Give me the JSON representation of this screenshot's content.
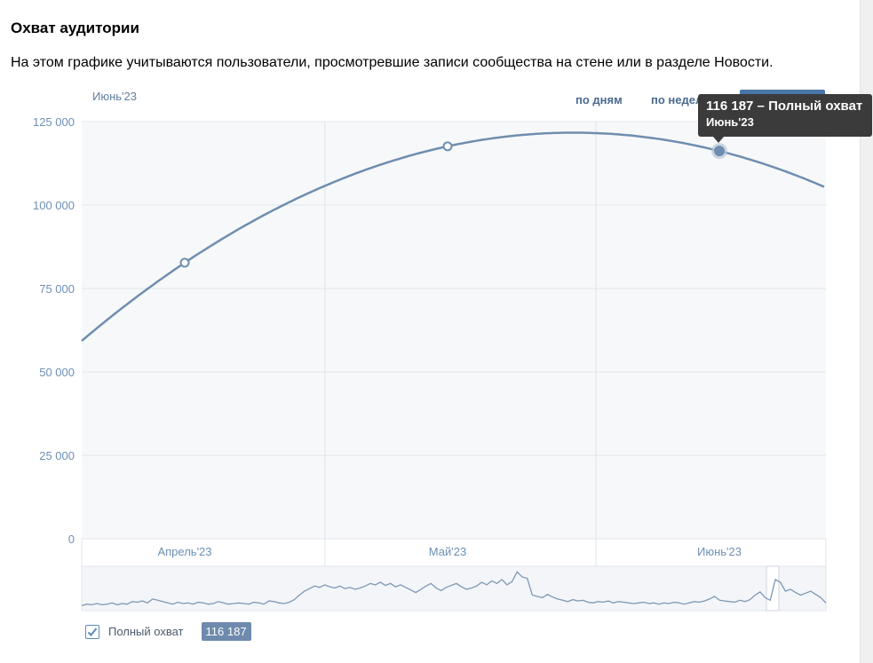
{
  "header": {
    "title": "Охват аудитории",
    "description": "На этом графике учитываются пользователи, просмотревшие записи сообщества на стене или в разделе Новости."
  },
  "period_label": "Июнь'23",
  "modes": [
    {
      "label": "по дням",
      "active": false
    },
    {
      "label": "по неделям",
      "active": false
    },
    {
      "label": "по месяцам",
      "active": true
    }
  ],
  "tooltip": {
    "value_text": "116 187 – Полный охват",
    "date_text": "Июнь'23"
  },
  "legend": {
    "label": "Полный охват",
    "value": "116 187",
    "checked": true
  },
  "colors": {
    "line": "#6f8eaf",
    "accent": "#4a76a8",
    "grid": "#e3e7ec",
    "tick_text": "#6d8fb5"
  },
  "chart_data": {
    "type": "line",
    "title": "",
    "xlabel": "",
    "ylabel": "",
    "ylim": [
      0,
      125000
    ],
    "y_ticks": [
      0,
      25000,
      50000,
      75000,
      100000,
      125000
    ],
    "y_tick_labels": [
      "0",
      "25 000",
      "50 000",
      "75 000",
      "100 000",
      "125 000"
    ],
    "x_tick_labels": [
      "Апрель'23",
      "Май'23",
      "Июнь'23"
    ],
    "grid": true,
    "series": [
      {
        "name": "Полный охват",
        "points": [
          {
            "label": "Апрель'23",
            "value": 82700
          },
          {
            "label": "Май'23",
            "value": 117600
          },
          {
            "label": "Июнь'23",
            "value": 116187
          }
        ]
      }
    ],
    "overview_sparkline": [
      8,
      10,
      9,
      11,
      9,
      10,
      12,
      9,
      11,
      10,
      14,
      13,
      15,
      12,
      18,
      16,
      14,
      12,
      10,
      13,
      11,
      12,
      10,
      13,
      12,
      10,
      11,
      14,
      12,
      10,
      11,
      12,
      11,
      10,
      13,
      12,
      10,
      15,
      14,
      12,
      11,
      13,
      17,
      24,
      30,
      34,
      38,
      36,
      40,
      37,
      35,
      38,
      34,
      36,
      33,
      35,
      38,
      42,
      40,
      44,
      39,
      42,
      37,
      40,
      36,
      32,
      28,
      33,
      38,
      42,
      35,
      31,
      36,
      39,
      42,
      37,
      33,
      35,
      38,
      44,
      40,
      46,
      42,
      48,
      40,
      45,
      60,
      52,
      50,
      24,
      22,
      20,
      25,
      21,
      18,
      16,
      14,
      17,
      15,
      16,
      13,
      12,
      14,
      13,
      15,
      12,
      14,
      13,
      12,
      11,
      12,
      13,
      11,
      12,
      10,
      12,
      11,
      13,
      12,
      10,
      12,
      14,
      13,
      15,
      18,
      22,
      16,
      15,
      14,
      13,
      16,
      14,
      17,
      24,
      29,
      20,
      16,
      48,
      44,
      30,
      33,
      28,
      24,
      27,
      30,
      25,
      20,
      12
    ]
  }
}
